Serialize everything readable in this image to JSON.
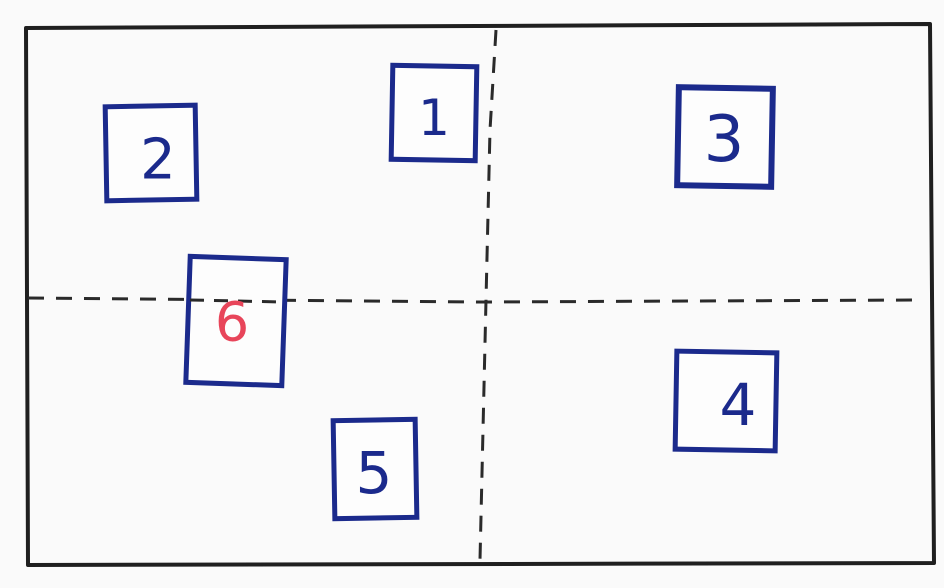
{
  "diagram": {
    "colors": {
      "frame": "#1f1f1f",
      "divider": "#2a2a2a",
      "box": "#1b2a8c",
      "label_default": "#1b2a8c",
      "label_highlight": "#e8455a",
      "background": "#fafafa"
    },
    "boxes": [
      {
        "label": "1"
      },
      {
        "label": "2"
      },
      {
        "label": "3"
      },
      {
        "label": "4"
      },
      {
        "label": "5"
      },
      {
        "label": "6",
        "highlight": true
      }
    ]
  }
}
